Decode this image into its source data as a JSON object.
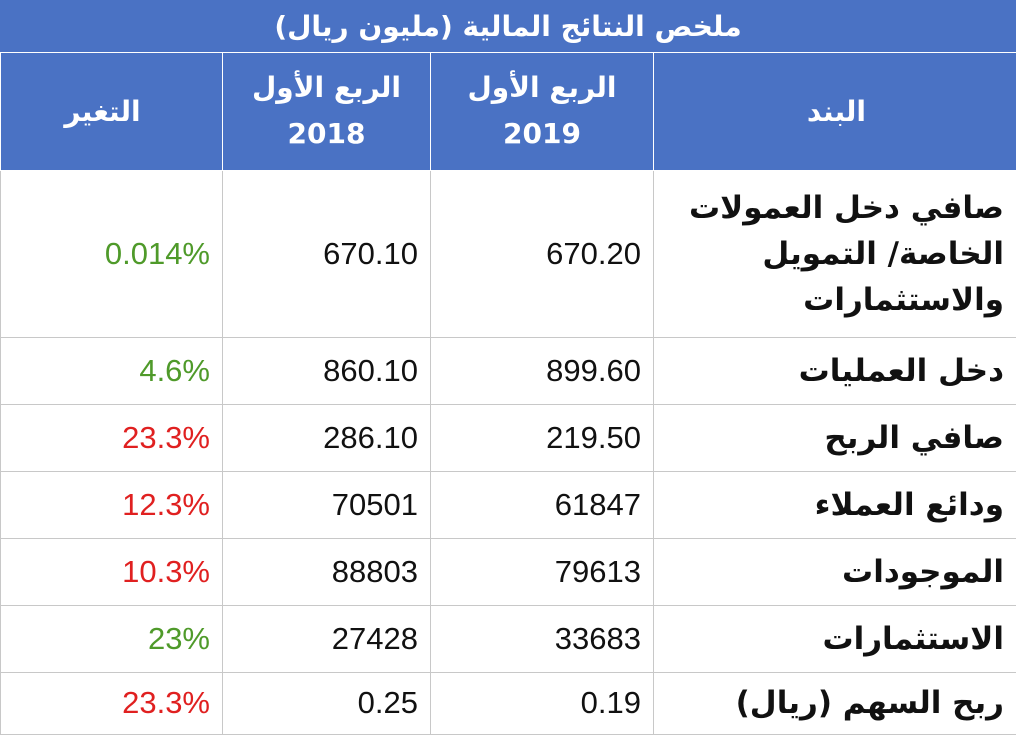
{
  "title": "ملخص النتائج المالية (مليون ريال)",
  "headers": {
    "change": "التغير",
    "q1_2018_label": "الربع الأول",
    "q1_2018_year": "2018",
    "q1_2019_label": "الربع الأول",
    "q1_2019_year": "2019",
    "item": "البند"
  },
  "rows": [
    {
      "item": "صافي دخل العمولات الخاصة/ التمويل والاستثمارات",
      "q2019": "670.20",
      "q2018": "670.10",
      "change": "0.014%",
      "change_color": "#4f9a2a"
    },
    {
      "item": "دخل العمليات",
      "q2019": "899.60",
      "q2018": "860.10",
      "change": "4.6%",
      "change_color": "#4f9a2a"
    },
    {
      "item": "صافي الربح",
      "q2019": "219.50",
      "q2018": "286.10",
      "change": "23.3%",
      "change_color": "#e02020"
    },
    {
      "item": "ودائع العملاء",
      "q2019": "61847",
      "q2018": "70501",
      "change": "12.3%",
      "change_color": "#e02020"
    },
    {
      "item": "الموجودات",
      "q2019": "79613",
      "q2018": "88803",
      "change": "10.3%",
      "change_color": "#e02020"
    },
    {
      "item": "الاستثمارات",
      "q2019": "33683",
      "q2018": "27428",
      "change": "23%",
      "change_color": "#4f9a2a"
    },
    {
      "item": "ربح السهم (ريال)",
      "q2019": "0.19",
      "q2018": "0.25",
      "change": "23.3%",
      "change_color": "#e02020"
    }
  ]
}
